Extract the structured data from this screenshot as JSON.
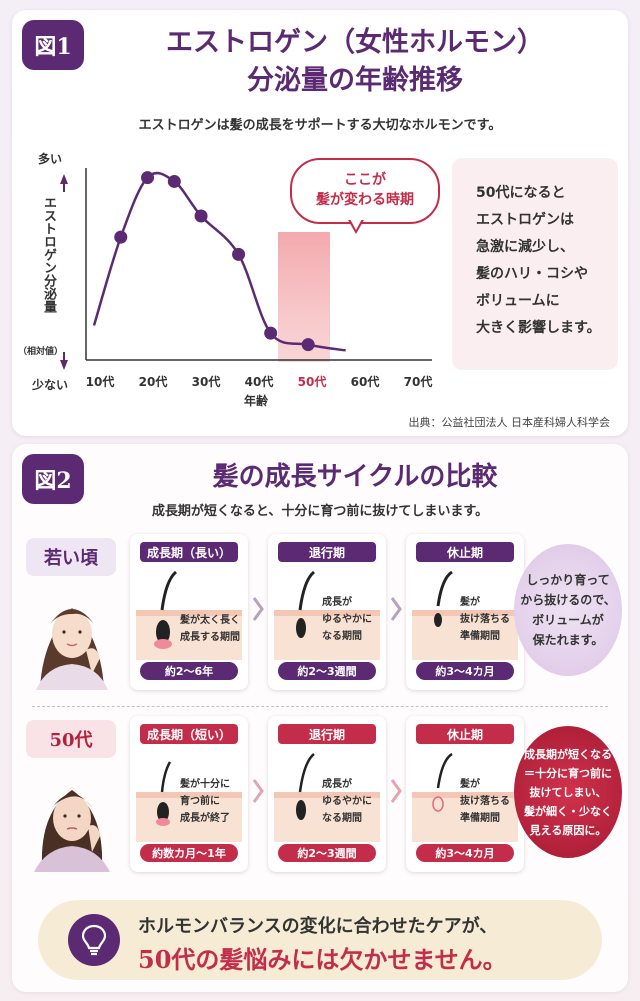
{
  "figure1": {
    "badge": "図1",
    "title_line1": "エストロゲン（女性ホルモン）",
    "title_line2": "分泌量の年齢推移",
    "subtitle": "エストロゲンは髪の成長をサポートする大切なホルモンです。",
    "y_axis_label": "エストロゲン分泌量",
    "y_top_label": "多い",
    "y_bottom_label": "少ない",
    "y_unit_note": "（相対値）",
    "x_axis_label": "年齢",
    "callout": {
      "line1": "ここが",
      "line2": "髪が変わる時期"
    },
    "note_lines": [
      "50代になると",
      "エストロゲンは",
      "急激に減少し、",
      "髪のハリ・コシや",
      "ボリュームに",
      "大きく影響します。"
    ],
    "source": "出典：公益社団法人 日本産科婦人科学会",
    "highlight_color": "#f2a0a4",
    "line_color": "#5b2a72"
  },
  "chart_data": {
    "type": "line",
    "title": "エストロゲン（女性ホルモン）分泌量の年齢推移",
    "xlabel": "年齢",
    "ylabel": "エストロゲン分泌量",
    "categories": [
      "10代",
      "20代",
      "30代",
      "40代",
      "50代",
      "60代",
      "70代"
    ],
    "highlight_category": "50代",
    "points": [
      {
        "x": 15,
        "y": 64
      },
      {
        "x": 20,
        "y": 95
      },
      {
        "x": 25,
        "y": 93
      },
      {
        "x": 30,
        "y": 75
      },
      {
        "x": 37,
        "y": 55
      },
      {
        "x": 43,
        "y": 14
      },
      {
        "x": 50,
        "y": 8
      }
    ],
    "grid": false
  },
  "figure2": {
    "badge": "図2",
    "title": "髪の成長サイクルの比較",
    "subtitle": "成長期が短くなると、十分に育つ前に抜けてしまいます。",
    "young": {
      "label": "若い頃",
      "cards": [
        {
          "head": "成長期（長い）",
          "desc": [
            "髪が太く長く",
            "成長する期間"
          ],
          "foot": "約2〜6年"
        },
        {
          "head": "退行期",
          "desc": [
            "成長が",
            "ゆるやかに",
            "なる期間"
          ],
          "foot": "約2〜3週間"
        },
        {
          "head": "休止期",
          "desc": [
            "髪が",
            "抜け落ちる",
            "準備期間"
          ],
          "foot": "約3〜4カ月"
        }
      ],
      "note": [
        "しっかり育って",
        "から抜けるので、",
        "ボリュームが",
        "保たれます。"
      ]
    },
    "fifty": {
      "label": "50代",
      "cards": [
        {
          "head": "成長期（短い）",
          "desc": [
            "髪が十分に",
            "育つ前に",
            "成長が終了"
          ],
          "foot": "約数カ月〜1年"
        },
        {
          "head": "退行期",
          "desc": [
            "成長が",
            "ゆるやかに",
            "なる期間"
          ],
          "foot": "約2〜3週間"
        },
        {
          "head": "休止期",
          "desc": [
            "髪が",
            "抜け落ちる",
            "準備期間"
          ],
          "foot": "約3〜4カ月"
        }
      ],
      "note": [
        "成長期が短くなる",
        "＝十分に育つ前に",
        "抜けてしまい、",
        "髪が細く・少なく",
        "見える原因に。"
      ]
    }
  },
  "banner": {
    "line1": "ホルモンバランスの変化に合わせたケアが、",
    "line2": "50代の髪悩みには欠かせません。",
    "icon": "lightbulb-icon"
  }
}
